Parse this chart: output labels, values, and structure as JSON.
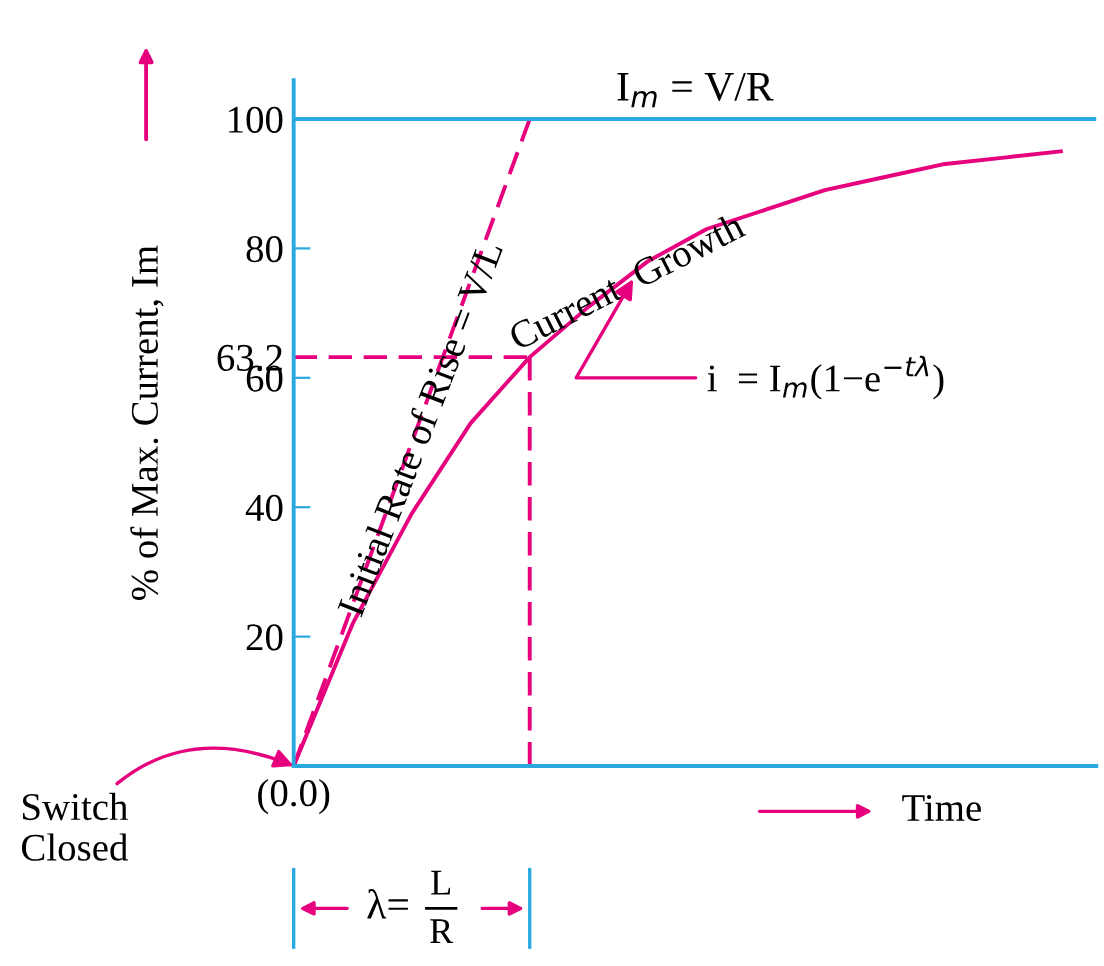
{
  "chart_data": {
    "type": "line",
    "ylabel": "% of Max. Current, Im",
    "categories": [
      null,
      null,
      null,
      null,
      null,
      null,
      null,
      null,
      null,
      null,
      null,
      null,
      null,
      null
    ],
    "ylim": [
      0,
      106
    ],
    "yticks": [
      20,
      40,
      60,
      63.2,
      80,
      100
    ],
    "tick_labels": "y",
    "grid": false,
    "legend": false,
    "series": [
      {
        "color": "#e6007e",
        "line_style": "solid",
        "values": [
          0,
          22,
          39,
          53,
          63.2,
          71,
          78,
          83,
          86,
          89,
          91,
          93,
          94,
          95
        ]
      },
      {
        "color": "#e6007e",
        "line_style": "dashed",
        "values": [
          0,
          25,
          50,
          75,
          100,
          null,
          null,
          null,
          null,
          null,
          null,
          null,
          null,
          null
        ]
      },
      {
        "color": "#e6007e",
        "line_style": "dashed",
        "values": [
          63.2,
          63.2,
          63.2,
          63.2,
          63.2,
          null,
          null,
          null,
          null,
          null,
          null,
          null,
          null,
          null
        ]
      }
    ],
    "ref_lines": [
      {
        "axis": "y",
        "value": 100,
        "label": "I$_{m}$ = V/R",
        "color": "#29a9e0"
      }
    ],
    "annotations": [
      "Current  Growth",
      "Initial Rate of Rise = V/L",
      "i  = I$_{m}$(1−e$^{−tλ}$)",
      "Switch\nClosed",
      "(0.0)",
      "Time",
      "λ=",
      "L",
      "R"
    ]
  }
}
